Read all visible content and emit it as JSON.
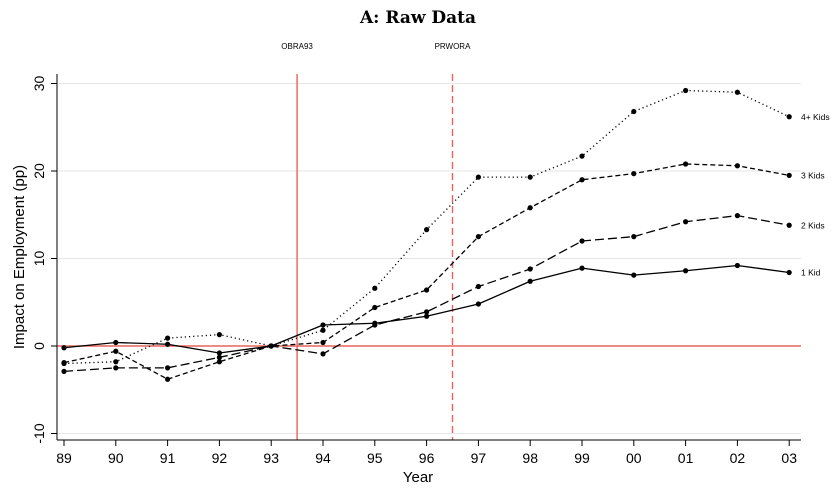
{
  "chart_data": {
    "type": "line",
    "title": "A: Raw Data",
    "xlabel": "Year",
    "ylabel": "Impact on Employment (pp)",
    "categories": [
      "89",
      "90",
      "91",
      "92",
      "93",
      "94",
      "95",
      "96",
      "97",
      "98",
      "99",
      "00",
      "01",
      "02",
      "03"
    ],
    "ylim": [
      -11,
      31
    ],
    "yticks": [
      -10,
      0,
      10,
      20,
      30
    ],
    "grid": "horizontal",
    "legend": "none",
    "vertical_lines": [
      {
        "label": "OBRA93",
        "x": 93.5,
        "style": "solid",
        "color": "#e8625c"
      },
      {
        "label": "PRWORA",
        "x": 96.5,
        "style": "dashed",
        "color": "#e8625c"
      }
    ],
    "reference_line": {
      "y": 0,
      "color": "#e8625c"
    },
    "series": [
      {
        "name": "1 Kid",
        "dash": "solid",
        "values": [
          -0.2,
          0.4,
          0.2,
          -0.8,
          0,
          2.4,
          2.6,
          3.4,
          4.8,
          7.4,
          8.9,
          8.1,
          8.6,
          9.2,
          8.4
        ]
      },
      {
        "name": "2 Kids",
        "dash": "longdash",
        "values": [
          -2.9,
          -2.5,
          -2.5,
          -1.3,
          0,
          -0.9,
          2.4,
          3.9,
          6.8,
          8.8,
          12.0,
          12.5,
          14.2,
          14.9,
          13.8
        ]
      },
      {
        "name": "3 Kids",
        "dash": "shortdash",
        "values": [
          -1.9,
          -0.6,
          -3.8,
          -1.8,
          0,
          0.4,
          4.4,
          6.4,
          12.5,
          15.8,
          19.0,
          19.7,
          20.8,
          20.6,
          19.5
        ]
      },
      {
        "name": "4+ Kids",
        "dash": "dotted",
        "values": [
          -2.0,
          -1.8,
          0.9,
          1.3,
          0,
          1.8,
          6.6,
          13.3,
          19.3,
          19.3,
          21.7,
          26.8,
          29.2,
          29.0,
          26.2
        ]
      }
    ]
  }
}
